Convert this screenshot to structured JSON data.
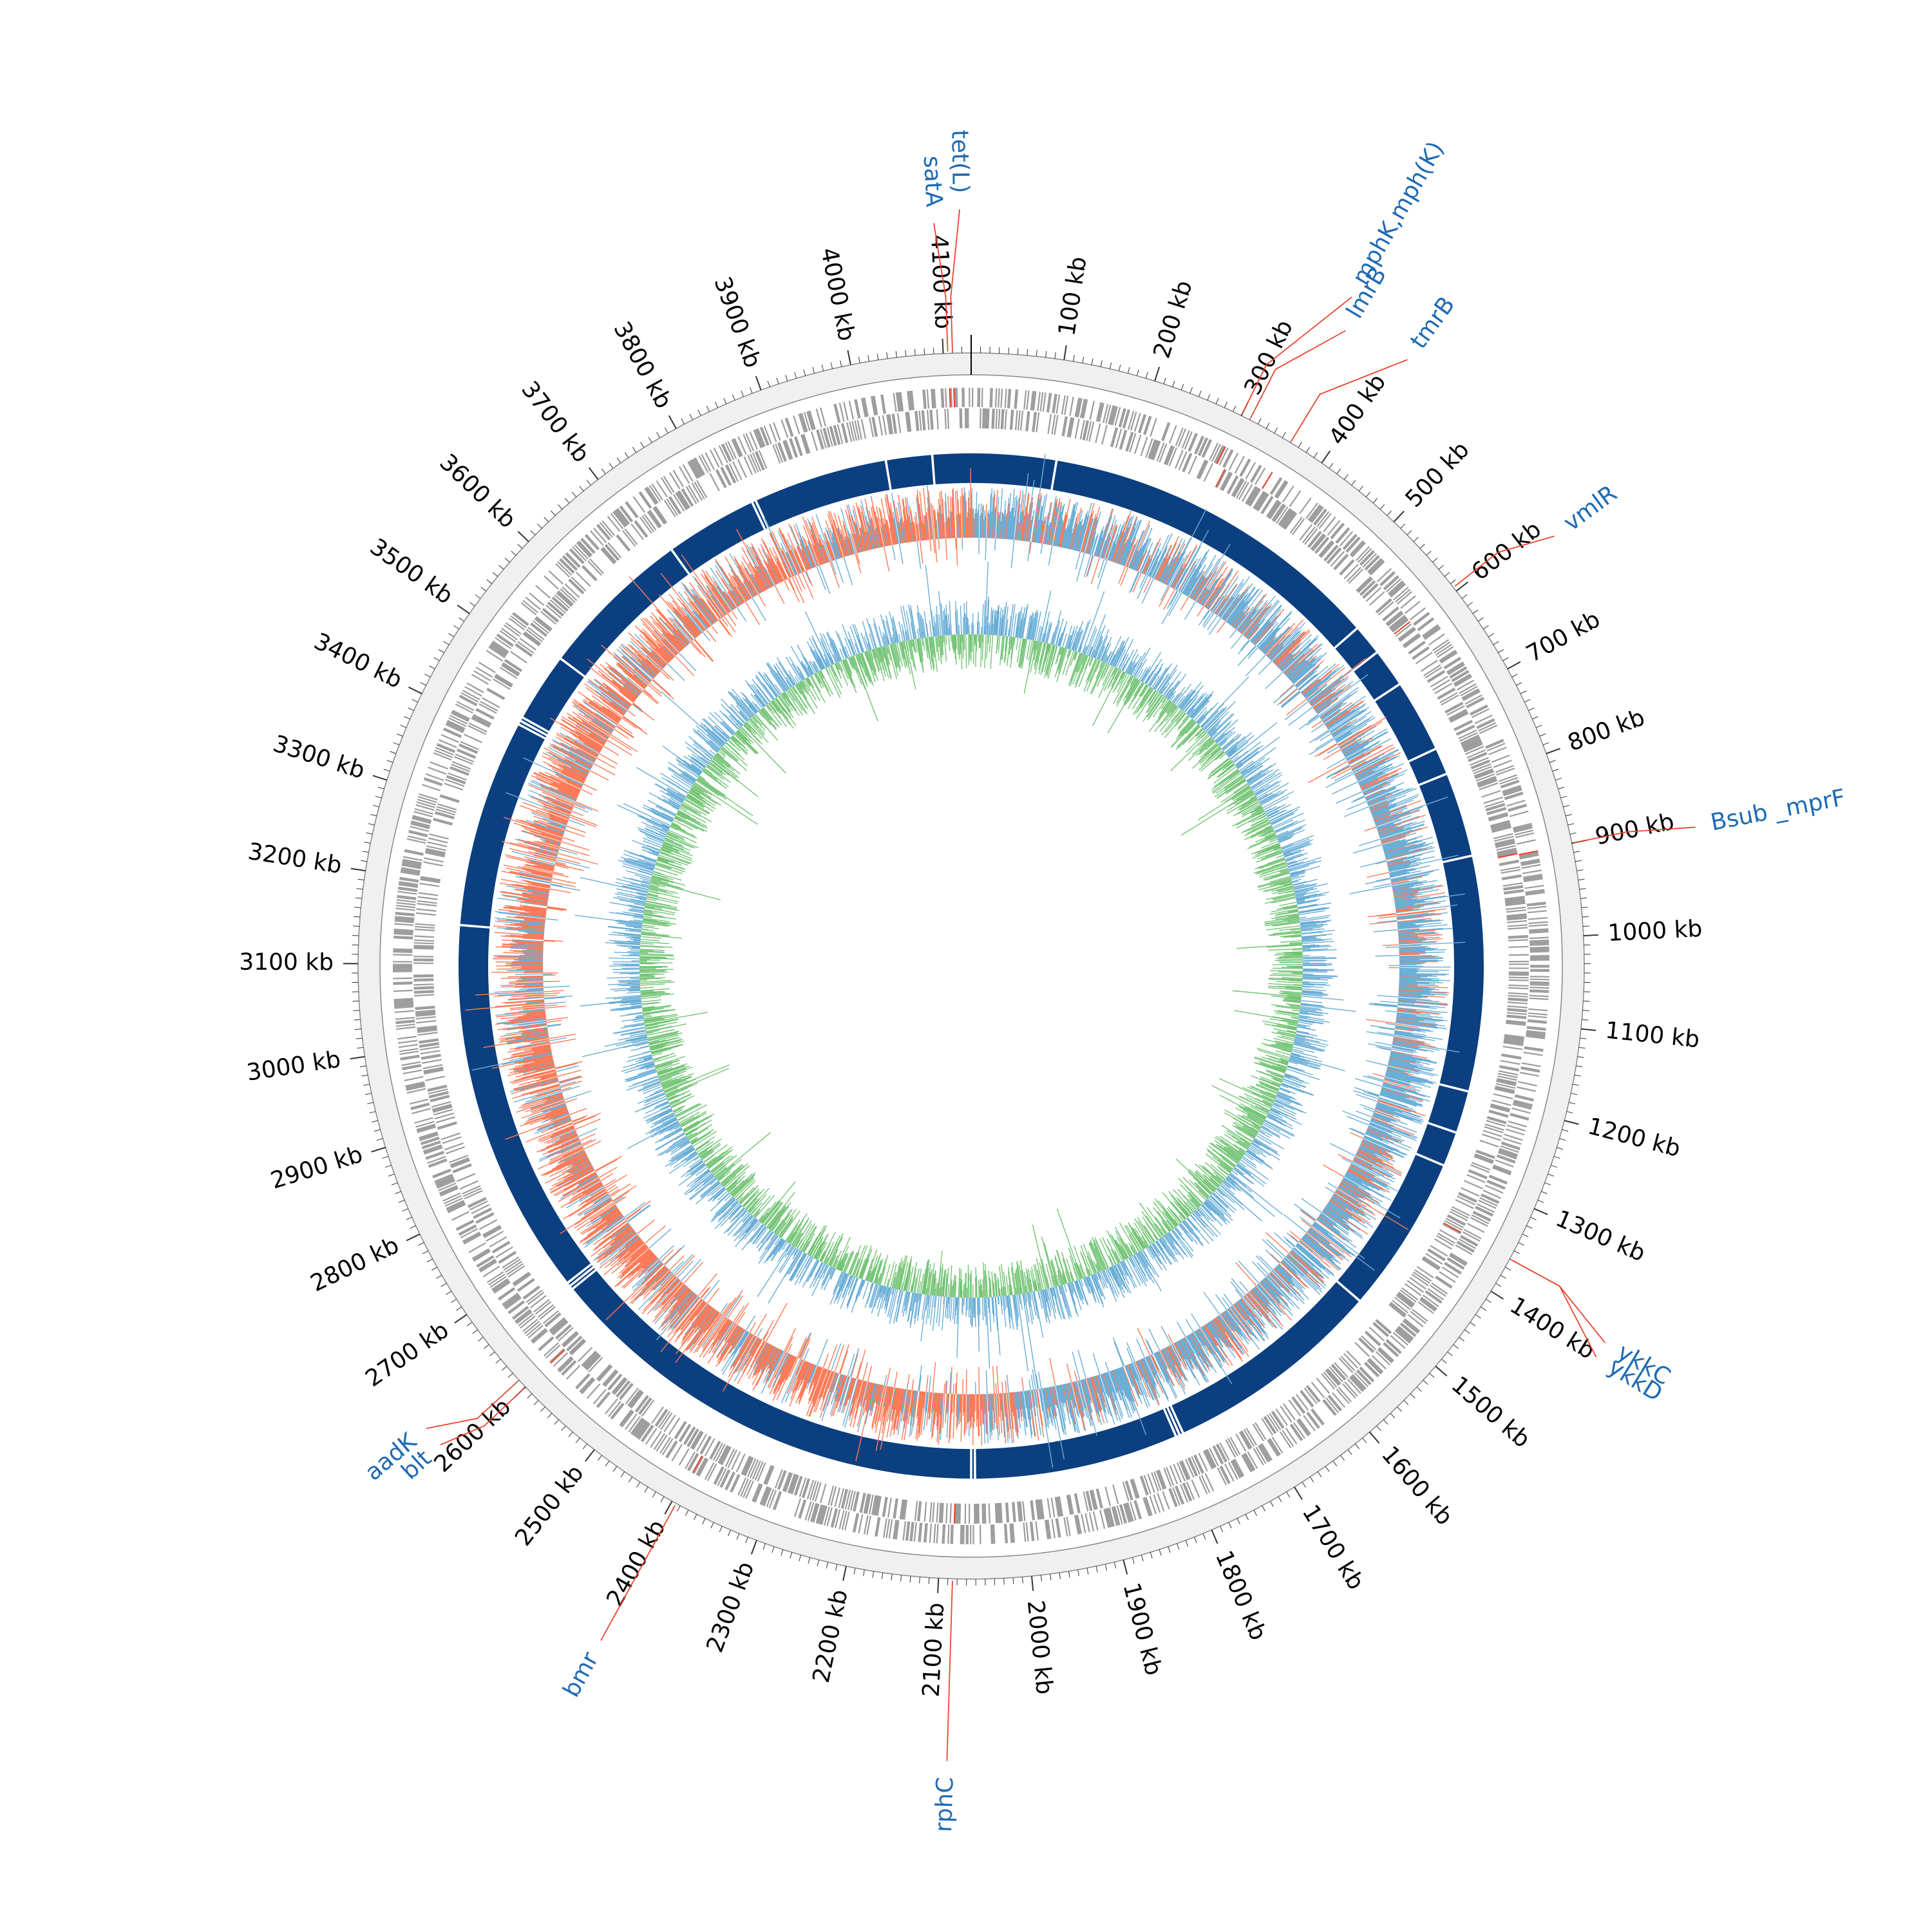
{
  "genome": {
    "length_kb": 4130,
    "tick_interval_kb": 100,
    "minor_tick_interval_kb": 10,
    "tick_unit": "kb",
    "tick_labels": [
      "100 kb",
      "200 kb",
      "300 kb",
      "400 kb",
      "500 kb",
      "600 kb",
      "700 kb",
      "800 kb",
      "900 kb",
      "1000 kb",
      "1100 kb",
      "1200 kb",
      "1300 kb",
      "1400 kb",
      "1500 kb",
      "1600 kb",
      "1700 kb",
      "1800 kb",
      "1900 kb",
      "2000 kb",
      "2100 kb",
      "2200 kb",
      "2300 kb",
      "2400 kb",
      "2500 kb",
      "2600 kb",
      "2700 kb",
      "2800 kb",
      "2900 kb",
      "3000 kb",
      "3100 kb",
      "3200 kb",
      "3300 kb",
      "3400 kb",
      "3500 kb",
      "3600 kb",
      "3700 kb",
      "3800 kb",
      "3900 kb",
      "4000 kb",
      "4100 kb"
    ]
  },
  "colors": {
    "label": "#1f6ab3",
    "leader": "#e8452c",
    "contig": "#0b3f7f",
    "feature": "#9c9c9c",
    "feature_highlight": "#e8452c",
    "outer_band": "#f0f0f0",
    "gc_skew_positive": "#6aaed6",
    "gc_skew_negative": "#fc7a57",
    "gc_content_above": "#6aaed6",
    "gc_content_below": "#74c476"
  },
  "genes": [
    {
      "name": "tet(L)",
      "position_kb": 4110
    },
    {
      "name": "satA",
      "position_kb": 4105
    },
    {
      "name": "mphK,mph(K)",
      "position_kb": 300
    },
    {
      "name": "lmrB",
      "position_kb": 310
    },
    {
      "name": "tmrB",
      "position_kb": 360
    },
    {
      "name": "vmlR",
      "position_kb": 595
    },
    {
      "name": "Bsub _mprF",
      "position_kb": 900
    },
    {
      "name": "ykkC",
      "position_kb": 1360
    },
    {
      "name": "ykkD",
      "position_kb": 1360
    },
    {
      "name": "rphC",
      "position_kb": 2085
    },
    {
      "name": "bmr",
      "position_kb": 2395
    },
    {
      "name": "aadK",
      "position_kb": 2610
    },
    {
      "name": "blt",
      "position_kb": 2600
    }
  ],
  "contigs": {
    "breaks_kb": [
      4080,
      110,
      560,
      600,
      650,
      745,
      780,
      890,
      1195,
      1250,
      1295,
      1500,
      1785,
      1790,
      1795,
      2060,
      2065,
      2650,
      2655,
      2660,
      3150,
      3420,
      3425,
      3430,
      3520,
      3720,
      3840,
      3845,
      4020
    ]
  },
  "tracks": {
    "gc_skew": {
      "baseline": "mid",
      "positive_range_kb": [
        0,
        2000
      ],
      "negative_range_kb": [
        2000,
        4130
      ]
    },
    "gc_content": {
      "baseline": "mean"
    }
  }
}
